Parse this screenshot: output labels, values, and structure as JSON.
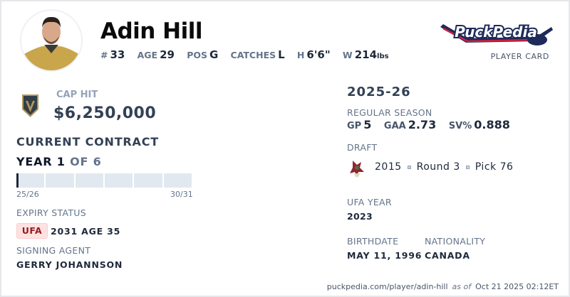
{
  "player": {
    "name": "Adin Hill",
    "number_label": "#",
    "number": "33",
    "age_label": "AGE",
    "age": "29",
    "pos_label": "POS",
    "pos": "G",
    "catches_label": "CATCHES",
    "catches": "L",
    "height_label": "H",
    "height": "6'6\"",
    "weight_label": "W",
    "weight": "214",
    "weight_unit": "lbs"
  },
  "brand": {
    "logo_text": "PuckPedia",
    "subtitle": "PLAYER CARD"
  },
  "contract": {
    "cap_hit_label": "CAP HIT",
    "cap_hit": "$6,250,000",
    "title": "CURRENT CONTRACT",
    "year_label": "YEAR 1",
    "of_label": "OF 6",
    "progress_years_done": 1,
    "progress_years_total": 6,
    "start_season": "25/26",
    "end_season": "30/31",
    "expiry_label": "EXPIRY STATUS",
    "expiry_badge": "UFA",
    "expiry_value": "2031 AGE 35",
    "agent_label": "SIGNING AGENT",
    "agent": "GERRY JOHANNSON"
  },
  "season": {
    "title": "2025-26",
    "type_label": "REGULAR SEASON",
    "gp_label": "GP",
    "gp": "5",
    "gaa_label": "GAA",
    "gaa": "2.73",
    "sv_label": "SV%",
    "sv": "0.888"
  },
  "draft": {
    "label": "DRAFT",
    "year": "2015",
    "round": "Round 3",
    "pick": "Pick 76"
  },
  "ufa": {
    "label": "UFA YEAR",
    "value": "2023"
  },
  "birth": {
    "label": "BIRTHDATE",
    "value": "MAY 11, 1996"
  },
  "nationality": {
    "label": "NATIONALITY",
    "value": "CANADA"
  },
  "footer": {
    "url": "puckpedia.com/player/adin-hill",
    "as_of": "as of",
    "timestamp": "Oct 21 2025 02:12ET"
  },
  "colors": {
    "team_gold": "#b4975a",
    "team_gray": "#333f48",
    "brand_navy": "#1e2a5a",
    "brand_red": "#d21f3c",
    "ufa_red": "#991b1b"
  }
}
